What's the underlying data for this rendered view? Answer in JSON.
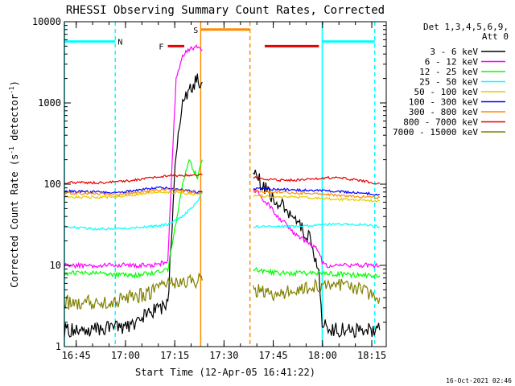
{
  "chart_data": {
    "type": "line",
    "title": "RHESSI Observing Summary Count Rates, Corrected",
    "xlabel": "Start Time (12-Apr-05 16:41:22)",
    "ylabel_prefix": "Corrected Count Rate (s",
    "ylabel_exp1": "-1",
    "ylabel_mid": " detector",
    "ylabel_exp2": "-1",
    "ylabel_suffix": ")",
    "x_unit": "minutes since 16:41:22",
    "xlim": [
      0,
      98
    ],
    "ylim": [
      1,
      10000
    ],
    "yscale": "log",
    "x_ticks": [
      {
        "label": "16:45",
        "x": 3.6
      },
      {
        "label": "17:00",
        "x": 18.6
      },
      {
        "label": "17:15",
        "x": 33.6
      },
      {
        "label": "17:30",
        "x": 48.6
      },
      {
        "label": "17:45",
        "x": 63.6
      },
      {
        "label": "18:00",
        "x": 78.6
      },
      {
        "label": "18:15",
        "x": 93.6
      }
    ],
    "y_ticks": [
      {
        "label": "1",
        "y": 1
      },
      {
        "label": "10",
        "y": 10
      },
      {
        "label": "100",
        "y": 100
      },
      {
        "label": "1000",
        "y": 1000
      },
      {
        "label": "10000",
        "y": 10000
      }
    ],
    "legend_header": [
      "Det 1,3,4,5,6,9,",
      "Att 0"
    ],
    "legend_position": "right",
    "grid": false,
    "gaps": [
      [
        42.5,
        57.5
      ]
    ],
    "series": [
      {
        "name": "3 - 6 keV",
        "color": "#000000",
        "x": [
          0,
          10,
          20,
          27,
          31.5,
          32.5,
          34,
          36,
          38,
          40.5,
          42,
          57.5,
          60,
          65,
          70,
          75,
          77.5,
          78.5,
          80,
          90,
          96
        ],
        "y": [
          1.6,
          1.6,
          1.8,
          2.8,
          3.2,
          20,
          250,
          900,
          1500,
          1900,
          1800,
          150,
          100,
          60,
          40,
          20,
          8,
          2,
          1.6,
          1.6,
          1.6
        ]
      },
      {
        "name": "6 - 12 keV",
        "color": "#ff00ff",
        "x": [
          0,
          10,
          20,
          27,
          31.5,
          32.5,
          34,
          36,
          38,
          40.5,
          42,
          57.5,
          60,
          65,
          70,
          75,
          77.5,
          78.5,
          80,
          90,
          96
        ],
        "y": [
          10,
          10,
          10,
          10,
          11,
          100,
          2000,
          3800,
          4500,
          5000,
          4500,
          90,
          70,
          40,
          25,
          18,
          15,
          11,
          10,
          10,
          10
        ]
      },
      {
        "name": "12 - 25 keV",
        "color": "#00ff00",
        "x": [
          0,
          10,
          20,
          27,
          31.5,
          33,
          36,
          38,
          40.5,
          42,
          57.5,
          65,
          78,
          80,
          90,
          96
        ],
        "y": [
          8,
          8,
          7.5,
          8,
          9,
          20,
          100,
          200,
          120,
          200,
          9,
          8,
          8,
          8,
          7.5,
          7.5
        ]
      },
      {
        "name": "25 - 50 keV",
        "color": "#00ffff",
        "x": [
          0,
          10,
          20,
          27,
          31.5,
          36,
          40.5,
          42,
          57.5,
          70,
          80,
          90,
          96
        ],
        "y": [
          30,
          28,
          29,
          30,
          32,
          40,
          60,
          80,
          30,
          30,
          32,
          32,
          30
        ]
      },
      {
        "name": "50 - 100 keV",
        "color": "#e6c800",
        "x": [
          0,
          10,
          15,
          20,
          25,
          30,
          35,
          40,
          42,
          57.5,
          65,
          70,
          75,
          80,
          85,
          90,
          96
        ],
        "y": [
          70,
          69,
          70,
          72,
          78,
          80,
          78,
          75,
          78,
          72,
          70,
          70,
          68,
          66,
          65,
          64,
          62
        ]
      },
      {
        "name": "100 - 300 keV",
        "color": "#0000ff",
        "x": [
          0,
          10,
          15,
          20,
          25,
          30,
          35,
          40,
          42,
          57.5,
          65,
          70,
          75,
          80,
          85,
          90,
          96
        ],
        "y": [
          82,
          80,
          78,
          82,
          88,
          90,
          86,
          80,
          80,
          88,
          86,
          85,
          84,
          82,
          80,
          78,
          75
        ]
      },
      {
        "name": "300 - 800 keV",
        "color": "#ff8c00",
        "x": [
          0,
          10,
          15,
          20,
          25,
          30,
          35,
          40,
          42,
          57.5,
          65,
          70,
          75,
          80,
          85,
          90,
          96
        ],
        "y": [
          78,
          76,
          74,
          76,
          82,
          86,
          84,
          78,
          78,
          82,
          80,
          78,
          77,
          75,
          72,
          70,
          68
        ]
      },
      {
        "name": "800 - 7000 keV",
        "color": "#e60000",
        "x": [
          0,
          10,
          15,
          20,
          25,
          30,
          35,
          40,
          42,
          57.5,
          65,
          70,
          75,
          80,
          85,
          90,
          96
        ],
        "y": [
          105,
          104,
          106,
          110,
          118,
          125,
          128,
          130,
          130,
          120,
          112,
          112,
          116,
          120,
          118,
          110,
          102
        ]
      },
      {
        "name": "7000 - 15000 keV",
        "color": "#808000",
        "x": [
          0,
          10,
          15,
          20,
          25,
          30,
          32,
          35,
          40,
          42,
          57.5,
          62,
          66,
          70,
          75,
          80,
          85,
          90,
          96
        ],
        "y": [
          3.5,
          3.5,
          3.5,
          4,
          4.5,
          5.5,
          6,
          6.5,
          6.5,
          6.5,
          5,
          4.5,
          4.5,
          5,
          5.5,
          6,
          5.5,
          5,
          4
        ]
      }
    ],
    "annotations": {
      "vlines": [
        {
          "x": 0,
          "color": "#00ffff",
          "style": "solid"
        },
        {
          "x": 15.5,
          "color": "#00ffff",
          "style": "dashed"
        },
        {
          "x": 41.5,
          "color": "#ff8c00",
          "style": "solid"
        },
        {
          "x": 56.5,
          "color": "#ff8c00",
          "style": "dashed"
        },
        {
          "x": 78.5,
          "color": "#00ffff",
          "style": "solid"
        },
        {
          "x": 94.5,
          "color": "#00ffff",
          "style": "dashed"
        }
      ],
      "bars": [
        {
          "x0": 0,
          "x1": 15.5,
          "y": 5700,
          "color": "#00ffff",
          "label": "N",
          "label_x": 17
        },
        {
          "x0": 31.5,
          "x1": 36.5,
          "y": 5000,
          "color": "#e60000",
          "label": "F",
          "label_x": 29.5
        },
        {
          "x0": 41.5,
          "x1": 56.5,
          "y": 8000,
          "color": "#ff8c00",
          "label": "S",
          "label_x": 40
        },
        {
          "x0": 61,
          "x1": 77.5,
          "y": 5000,
          "color": "#e60000",
          "label": "",
          "label_x": 0
        },
        {
          "x0": 78.5,
          "x1": 94.5,
          "y": 5700,
          "color": "#00ffff",
          "label": "",
          "label_x": 0
        }
      ]
    }
  },
  "footer": {
    "timestamp": "16-Oct-2021 02:46"
  }
}
